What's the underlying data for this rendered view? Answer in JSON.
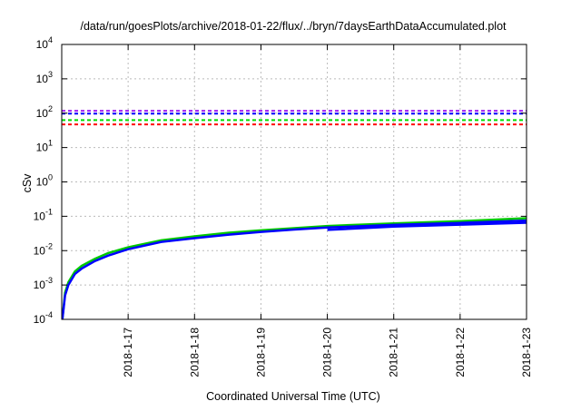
{
  "chart_data": {
    "type": "line",
    "title": "/data/run/goesPlots/archive/2018-01-22/flux/../bryn/7daysEarthDataAccumulated.plot",
    "xlabel": "Coordinated Universal Time (UTC)",
    "ylabel": "cSv",
    "yscale": "log",
    "ylim": [
      0.0001,
      10000
    ],
    "xlim_days": [
      0,
      7
    ],
    "x_origin": "2018-1-16",
    "grid": true,
    "x_tick_labels": [
      "2018-1-17",
      "2018-1-18",
      "2018-1-19",
      "2018-1-20",
      "2018-1-21",
      "2018-1-22",
      "2018-1-23"
    ],
    "y_tick_labels": [
      {
        "base": "10",
        "exp": "-4"
      },
      {
        "base": "10",
        "exp": "-3"
      },
      {
        "base": "10",
        "exp": "-2"
      },
      {
        "base": "10",
        "exp": "-1"
      },
      {
        "base": "10",
        "exp": "0"
      },
      {
        "base": "10",
        "exp": "1"
      },
      {
        "base": "10",
        "exp": "2"
      },
      {
        "base": "10",
        "exp": "3"
      },
      {
        "base": "10",
        "exp": "4"
      }
    ],
    "thresholds": [
      {
        "value": 117,
        "color": "#a020f0"
      },
      {
        "value": 97,
        "color": "#0000ff"
      },
      {
        "value": 63,
        "color": "#00dd00"
      },
      {
        "value": 47,
        "color": "#ff0000"
      }
    ],
    "series": [
      {
        "name": "green",
        "color": "#00c800",
        "x": [
          0.01,
          0.05,
          0.1,
          0.2,
          0.3,
          0.5,
          0.7,
          1,
          1.5,
          2,
          2.5,
          3,
          3.5,
          4,
          5,
          6,
          7
        ],
        "y": [
          0.0001,
          0.0006,
          0.0012,
          0.0025,
          0.0036,
          0.0058,
          0.0085,
          0.0125,
          0.02,
          0.026,
          0.033,
          0.039,
          0.045,
          0.052,
          0.062,
          0.072,
          0.088
        ]
      },
      {
        "name": "blue",
        "color": "#0000ff",
        "x": [
          0.01,
          0.05,
          0.1,
          0.2,
          0.3,
          0.5,
          0.7,
          1,
          1.5,
          2,
          2.5,
          3,
          3.5,
          4,
          5,
          6,
          7
        ],
        "y": [
          0.0001,
          0.0005,
          0.001,
          0.0021,
          0.003,
          0.005,
          0.0072,
          0.011,
          0.018,
          0.023,
          0.029,
          0.035,
          0.041,
          0.047,
          0.056,
          0.064,
          0.075
        ]
      },
      {
        "name": "blue-2",
        "color": "#0000ff",
        "x": [
          4,
          5,
          6,
          7
        ],
        "y": [
          0.04,
          0.05,
          0.057,
          0.065
        ]
      }
    ]
  }
}
